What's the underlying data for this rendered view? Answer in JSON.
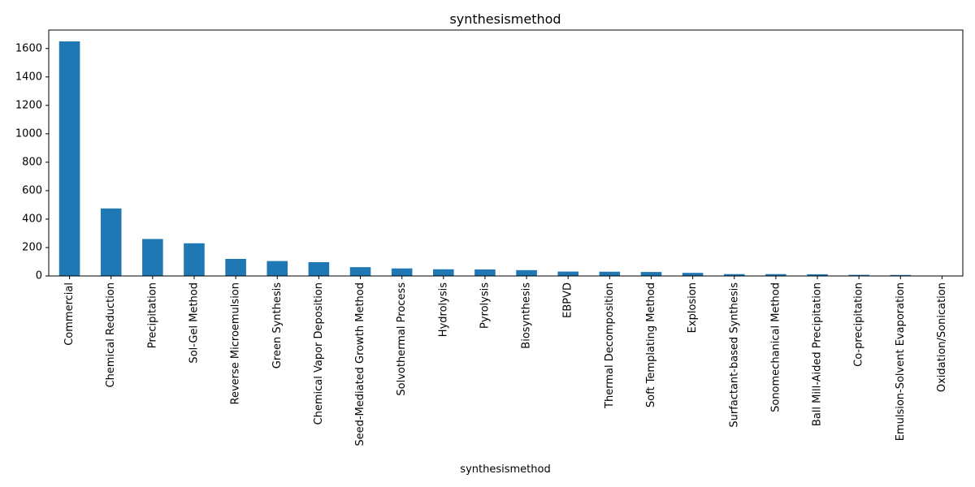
{
  "chart_data": {
    "type": "bar",
    "title": "synthesismethod",
    "xlabel": "synthesismethod",
    "ylabel": "",
    "ylim": [
      0,
      1730
    ],
    "yticks": [
      0,
      200,
      400,
      600,
      800,
      1000,
      1200,
      1400,
      1600
    ],
    "grid": false,
    "legend": "none",
    "bar_color": "#1f77b4",
    "categories": [
      "Commercial",
      "Chemical Reduction",
      "Precipitation",
      "Sol-Gel Method",
      "Reverse Microemulsion",
      "Green Synthesis",
      "Chemical Vapor Deposition",
      "Seed-Mediated Growth Method",
      "Solvothermal Process",
      "Hydrolysis",
      "Pyrolysis",
      "Biosynthesis",
      "EBPVD",
      "Thermal Decomposition",
      "Soft Templating Method",
      "Explosion",
      "Surfactant-based Synthesis",
      "Sonomechanical Method",
      "Ball Mill-Aided Precipitation",
      "Co-precipitation",
      "Emulsion-Solvent Evaporation",
      "Oxidation/Sonication"
    ],
    "values": [
      1650,
      475,
      260,
      230,
      120,
      105,
      97,
      62,
      53,
      47,
      46,
      41,
      31,
      30,
      28,
      22,
      13,
      13,
      12,
      8,
      7,
      1
    ]
  }
}
